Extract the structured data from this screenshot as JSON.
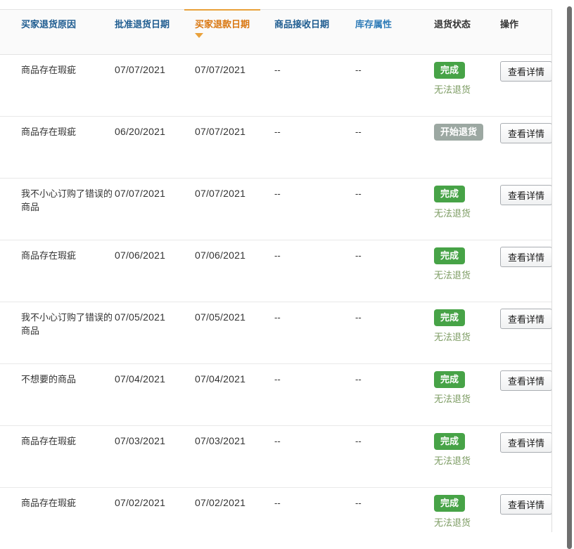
{
  "header": {
    "columns": [
      {
        "label": "买家退货原因",
        "style": "sortable-blue"
      },
      {
        "label": "批准退货日期",
        "style": "sortable-blue"
      },
      {
        "label": "买家退款日期",
        "style": "sorted-orange",
        "sort_direction": "desc"
      },
      {
        "label": "商品接收日期",
        "style": "sortable-blue"
      },
      {
        "label": "库存属性",
        "style": "link-blue"
      },
      {
        "label": "退货状态",
        "style": "plain"
      },
      {
        "label": "操作",
        "style": "plain"
      }
    ]
  },
  "rows": [
    {
      "reason": "商品存在瑕疵",
      "approved_date": "07/07/2021",
      "refund_date": "07/07/2021",
      "received_date": "--",
      "inventory_attr": "--",
      "status": "完成",
      "status_type": "done",
      "status_note": "无法退货",
      "action": "查看详情"
    },
    {
      "reason": "商品存在瑕疵",
      "approved_date": "06/20/2021",
      "refund_date": "07/07/2021",
      "received_date": "--",
      "inventory_attr": "--",
      "status": "开始退货",
      "status_type": "started",
      "status_note": "",
      "action": "查看详情"
    },
    {
      "reason": "我不小心订购了错误的商品",
      "approved_date": "07/07/2021",
      "refund_date": "07/07/2021",
      "received_date": "--",
      "inventory_attr": "--",
      "status": "完成",
      "status_type": "done",
      "status_note": "无法退货",
      "action": "查看详情"
    },
    {
      "reason": "商品存在瑕疵",
      "approved_date": "07/06/2021",
      "refund_date": "07/06/2021",
      "received_date": "--",
      "inventory_attr": "--",
      "status": "完成",
      "status_type": "done",
      "status_note": "无法退货",
      "action": "查看详情"
    },
    {
      "reason": "我不小心订购了错误的商品",
      "approved_date": "07/05/2021",
      "refund_date": "07/05/2021",
      "received_date": "--",
      "inventory_attr": "--",
      "status": "完成",
      "status_type": "done",
      "status_note": "无法退货",
      "action": "查看详情"
    },
    {
      "reason": "不想要的商品",
      "approved_date": "07/04/2021",
      "refund_date": "07/04/2021",
      "received_date": "--",
      "inventory_attr": "--",
      "status": "完成",
      "status_type": "done",
      "status_note": "无法退货",
      "action": "查看详情"
    },
    {
      "reason": "商品存在瑕疵",
      "approved_date": "07/03/2021",
      "refund_date": "07/03/2021",
      "received_date": "--",
      "inventory_attr": "--",
      "status": "完成",
      "status_type": "done",
      "status_note": "无法退货",
      "action": "查看详情"
    },
    {
      "reason": "商品存在瑕疵",
      "approved_date": "07/02/2021",
      "refund_date": "07/02/2021",
      "received_date": "--",
      "inventory_attr": "--",
      "status": "完成",
      "status_type": "done",
      "status_note": "无法退货",
      "action": "查看详情"
    }
  ],
  "icons": {
    "sort_descending": "sort-descending-icon"
  },
  "colors": {
    "header_link_blue": "#1e5c90",
    "header_attr_blue": "#2f7cb8",
    "header_plain": "#333333",
    "sorted_orange": "#d9760f",
    "sort_line_orange": "#e9a13b",
    "badge_done_green": "#47a347",
    "badge_started_gray": "#9ca8a2",
    "note_green": "#7d9c63",
    "row_border": "#e9e9e9",
    "table_border": "#dddddd",
    "button_border": "#a9adb2",
    "header_bg": "#fafafa",
    "text": "#333333",
    "scrollbar": "#6f6f6f"
  }
}
